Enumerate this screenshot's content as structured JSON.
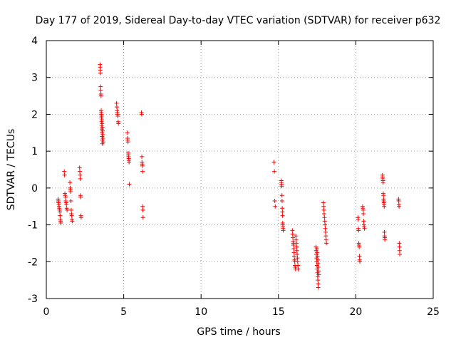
{
  "chart_data": {
    "type": "scatter",
    "title": "Day 177 of 2019, Sidereal Day-to-day VTEC variation (SDTVAR) for receiver p632",
    "xlabel": "GPS time / hours",
    "ylabel": "SDTVAR / TECUs",
    "xlim": [
      0,
      25
    ],
    "ylim": [
      -3,
      4
    ],
    "xticks": [
      0,
      5,
      10,
      15,
      20,
      25
    ],
    "yticks": [
      -3,
      -2,
      -1,
      0,
      1,
      2,
      3,
      4
    ],
    "grid": true,
    "marker": "+",
    "series_color": "#ff0000",
    "clusters": [
      {
        "x": 0.85,
        "dx": 0.18,
        "y": [
          -0.3,
          -0.35,
          -0.4,
          -0.45,
          -0.5,
          -0.55,
          -0.6,
          -0.65,
          -0.75,
          -0.85,
          -0.9,
          -0.95
        ]
      },
      {
        "x": 1.25,
        "dx": 0.18,
        "y": [
          0.45,
          0.35,
          -0.15,
          -0.2,
          -0.25,
          -0.35,
          -0.4,
          -0.45,
          -0.55,
          -0.6
        ]
      },
      {
        "x": 1.6,
        "dx": 0.15,
        "y": [
          0.15,
          0.0,
          -0.05,
          -0.1,
          -0.35,
          -0.6,
          -0.7,
          -0.75,
          -0.85,
          -0.9
        ]
      },
      {
        "x": 2.2,
        "dx": 0.1,
        "y": [
          0.55,
          0.45,
          0.35,
          0.25,
          -0.2,
          -0.25,
          -0.75,
          -0.8
        ]
      },
      {
        "x": 3.55,
        "dx": 0.15,
        "y": [
          3.35,
          3.28,
          3.2,
          3.12,
          2.75,
          2.65,
          2.55,
          2.5,
          2.1,
          2.0,
          1.9,
          1.8,
          1.7,
          1.6,
          1.5,
          1.4,
          1.3,
          1.2
        ]
      },
      {
        "x": 3.62,
        "dx": 0.12,
        "y": [
          2.05,
          1.95,
          1.85,
          1.75,
          1.65,
          1.55,
          1.45,
          1.35,
          1.25
        ]
      },
      {
        "x": 4.6,
        "dx": 0.12,
        "y": [
          2.3,
          2.2,
          2.1,
          2.05,
          2.0,
          1.95,
          1.8,
          1.75
        ]
      },
      {
        "x": 5.3,
        "dx": 0.12,
        "y": [
          1.5,
          1.35,
          1.3,
          1.25,
          0.95,
          0.9,
          0.85,
          0.8,
          0.75,
          0.7,
          0.1
        ]
      },
      {
        "x": 6.2,
        "dx": 0.1,
        "y": [
          2.05,
          2.0,
          0.85,
          0.7,
          0.65,
          0.6,
          0.45,
          -0.5,
          -0.6,
          -0.8
        ]
      },
      {
        "x": 14.75,
        "dx": 0.08,
        "y": [
          0.7,
          0.45,
          -0.35,
          -0.5
        ]
      },
      {
        "x": 15.25,
        "dx": 0.12,
        "y": [
          0.2,
          0.15,
          0.1,
          0.05,
          -0.2,
          -0.35,
          -0.55,
          -0.65,
          -0.75,
          -0.95,
          -1.0,
          -1.05,
          -1.1,
          -1.15
        ]
      },
      {
        "x": 16.0,
        "dx": 0.2,
        "y": [
          -1.15,
          -1.25,
          -1.35,
          -1.45,
          -1.5,
          -1.55,
          -1.65,
          -1.75,
          -1.85,
          -1.95,
          -2.0,
          -2.1,
          -2.15,
          -2.2
        ]
      },
      {
        "x": 16.2,
        "dx": 0.15,
        "y": [
          -1.3,
          -1.4,
          -1.5,
          -1.6,
          -1.7,
          -1.8,
          -1.9,
          -2.0,
          -2.1,
          -2.2
        ]
      },
      {
        "x": 17.5,
        "dx": 0.15,
        "y": [
          -1.6,
          -1.7,
          -1.8,
          -1.9,
          -2.0,
          -2.1,
          -2.2,
          -2.3,
          -2.4,
          -2.5,
          -2.6,
          -2.7
        ]
      },
      {
        "x": 17.55,
        "dx": 0.12,
        "y": [
          -1.65,
          -1.75,
          -1.85,
          -1.95,
          -2.05,
          -2.15,
          -2.25,
          -2.35
        ]
      },
      {
        "x": 18.0,
        "dx": 0.2,
        "y": [
          -0.4,
          -0.5,
          -0.6,
          -0.7,
          -0.8,
          -0.9,
          -1.0,
          -1.1,
          -1.2,
          -1.3,
          -1.4,
          -1.5
        ]
      },
      {
        "x": 20.2,
        "dx": 0.12,
        "y": [
          -0.8,
          -0.85,
          -1.1,
          -1.15,
          -1.5,
          -1.55,
          -1.6,
          -1.85,
          -1.95,
          -2.0
        ]
      },
      {
        "x": 20.5,
        "dx": 0.12,
        "y": [
          -0.5,
          -0.55,
          -0.6,
          -0.7,
          -0.9,
          -1.0,
          -1.05,
          -1.1
        ]
      },
      {
        "x": 21.8,
        "dx": 0.15,
        "y": [
          0.35,
          0.3,
          0.25,
          0.2,
          0.15,
          -0.15,
          -0.2,
          -0.3,
          -0.35,
          -0.4,
          -0.45,
          -0.5,
          -1.2,
          -1.3,
          -1.35,
          -1.4
        ]
      },
      {
        "x": 22.8,
        "dx": 0.08,
        "y": [
          -0.3,
          -0.35,
          -0.45,
          -0.5,
          -1.5,
          -1.6,
          -1.7,
          -1.8
        ]
      }
    ]
  }
}
